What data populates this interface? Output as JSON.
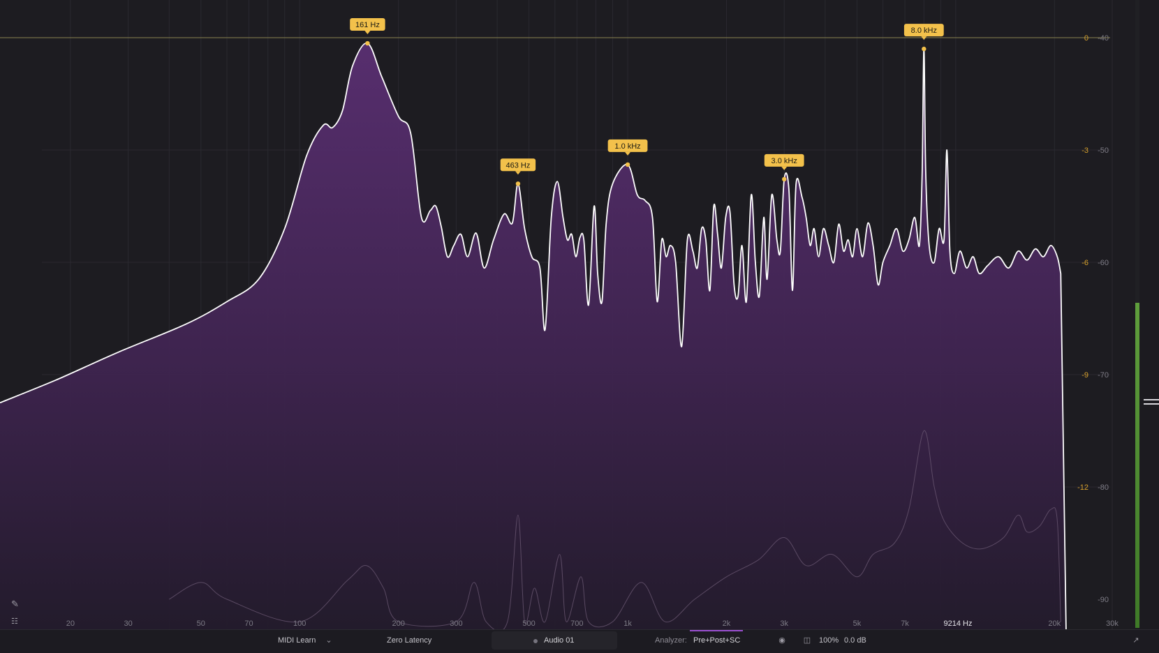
{
  "frequency_axis": {
    "tick_labels": [
      "20",
      "30",
      "50",
      "70",
      "100",
      "200",
      "300",
      "500",
      "700",
      "1k",
      "2k",
      "3k",
      "5k",
      "7k",
      "20k",
      "30k"
    ],
    "tick_values_hz": [
      20,
      30,
      50,
      70,
      100,
      200,
      300,
      500,
      700,
      1000,
      2000,
      3000,
      5000,
      7000,
      20000,
      30000
    ],
    "cursor_readout": "9214 Hz"
  },
  "db_scale": {
    "gain_labels": [
      "0",
      "-3",
      "-6",
      "-9",
      "-12"
    ],
    "spectrum_labels": [
      "-40",
      "-50",
      "-60",
      "-70",
      "-80",
      "-90"
    ]
  },
  "peaks": [
    {
      "label": "161 Hz",
      "freq_hz": 161,
      "level_db": -40.5
    },
    {
      "label": "463 Hz",
      "freq_hz": 463,
      "level_db": -53
    },
    {
      "label": "1.0 kHz",
      "freq_hz": 1000,
      "level_db": -51.3
    },
    {
      "label": "3.0 kHz",
      "freq_hz": 3000,
      "level_db": -52.6
    },
    {
      "label": "8.0 kHz",
      "freq_hz": 8000,
      "level_db": -41
    }
  ],
  "bottom_bar": {
    "midi_learn": "MIDI Learn",
    "latency": "Zero Latency",
    "instance_name": "Audio 01",
    "analyzer_label": "Analyzer:",
    "analyzer_mode": "Pre+Post+SC",
    "zoom": "100%",
    "gain": "0.0 dB"
  },
  "icons": {
    "chevron": "chevron-down-icon",
    "camera": "camera-icon",
    "link": "link-icon",
    "resize": "resize-icon",
    "paint": "paintbrush-icon",
    "piano": "piano-icon"
  },
  "colors": {
    "background": "#1c1b20",
    "spectrum_fill": "#4a2a5e",
    "spectrum_line": "#ffffff",
    "peak_label": "#f3c14b",
    "meter_green": "#5f9e3c",
    "accent_purple": "#9b4fd1"
  }
}
